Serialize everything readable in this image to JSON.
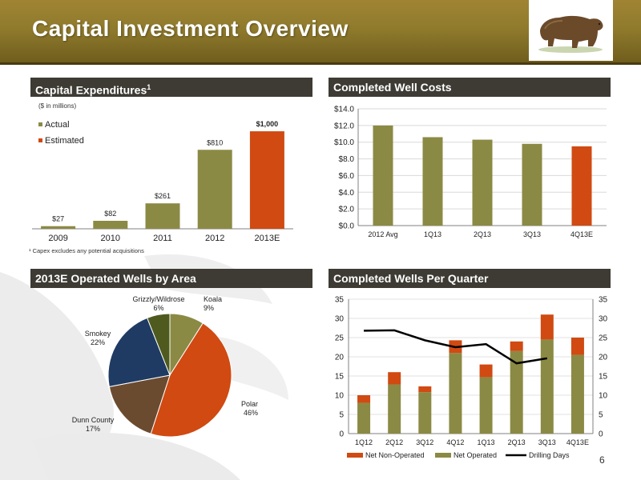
{
  "header": {
    "title": "Capital Investment Overview",
    "logo_icon": "bear-icon",
    "banner_color": "#8f7a2c"
  },
  "sections": {
    "capex_title": "Capital Expenditures",
    "capex_title_sup": "1",
    "well_costs_title": "Completed Well Costs",
    "wells_by_area_title": "2013E Operated Wells by Area",
    "wells_per_quarter_title": "Completed Wells Per Quarter"
  },
  "notes": {
    "capex_units": "($ in millions)",
    "capex_footnote": "¹ Capex excludes any potential acquisitions"
  },
  "page_number": "6",
  "colors": {
    "actual": "#8b8a44",
    "estimated": "#d04a12",
    "navy": "#1f3b63",
    "brown": "#6b4b2f",
    "olive_dark": "#4f5a1e",
    "line": "#000000"
  },
  "chart_data": [
    {
      "id": "capex",
      "type": "bar",
      "categories": [
        "2009",
        "2010",
        "2011",
        "2012",
        "2013E"
      ],
      "values": [
        27,
        82,
        261,
        810,
        1000
      ],
      "value_labels": [
        "$27",
        "$82",
        "$261",
        "$810",
        "$1,000"
      ],
      "series_type": [
        "Actual",
        "Actual",
        "Actual",
        "Actual",
        "Estimated"
      ],
      "legend": [
        "Actual",
        "Estimated"
      ],
      "ylim": [
        0,
        1050
      ]
    },
    {
      "id": "well_costs",
      "type": "bar",
      "categories": [
        "2012 Avg",
        "1Q13",
        "2Q13",
        "3Q13",
        "4Q13E"
      ],
      "values": [
        12.0,
        10.6,
        10.3,
        9.8,
        9.5
      ],
      "estimated_index": 4,
      "yticks": [
        "$0.0",
        "$2.0",
        "$4.0",
        "$6.0",
        "$8.0",
        "$10.0",
        "$12.0",
        "$14.0"
      ],
      "ylim": [
        0,
        14
      ]
    },
    {
      "id": "wells_by_area",
      "type": "pie",
      "slices": [
        {
          "label": "Koala",
          "pct": "9%",
          "value": 9,
          "color": "#8b8a44"
        },
        {
          "label": "Polar",
          "pct": "46%",
          "value": 46,
          "color": "#d04a12"
        },
        {
          "label": "Dunn County",
          "pct": "17%",
          "value": 17,
          "color": "#6b4b2f"
        },
        {
          "label": "Smokey",
          "pct": "22%",
          "value": 22,
          "color": "#1f3b63"
        },
        {
          "label": "Grizzly/Wildrose",
          "pct": "6%",
          "value": 6,
          "color": "#4f5a1e"
        }
      ]
    },
    {
      "id": "wells_per_quarter",
      "type": "bar",
      "categories": [
        "1Q12",
        "2Q12",
        "3Q12",
        "4Q12",
        "1Q13",
        "2Q13",
        "3Q13",
        "4Q13E"
      ],
      "series": [
        {
          "name": "Net Operated",
          "values": [
            8,
            12.8,
            10.8,
            21,
            14.7,
            21.5,
            24.5,
            20.5
          ]
        },
        {
          "name": "Net Non-Operated",
          "values": [
            2,
            3.2,
            1.5,
            3.3,
            3.3,
            2.5,
            6.5,
            4.5
          ]
        },
        {
          "name": "Drilling Days",
          "values": [
            26.8,
            26.9,
            24.3,
            22.5,
            23.3,
            18.3,
            19.6,
            null
          ]
        }
      ],
      "legend": [
        "Net Non-Operated",
        "Net Operated",
        "Drilling Days"
      ],
      "ylim": [
        0,
        35
      ],
      "yticks": [
        "0",
        "5",
        "10",
        "15",
        "20",
        "25",
        "30",
        "35"
      ]
    }
  ]
}
